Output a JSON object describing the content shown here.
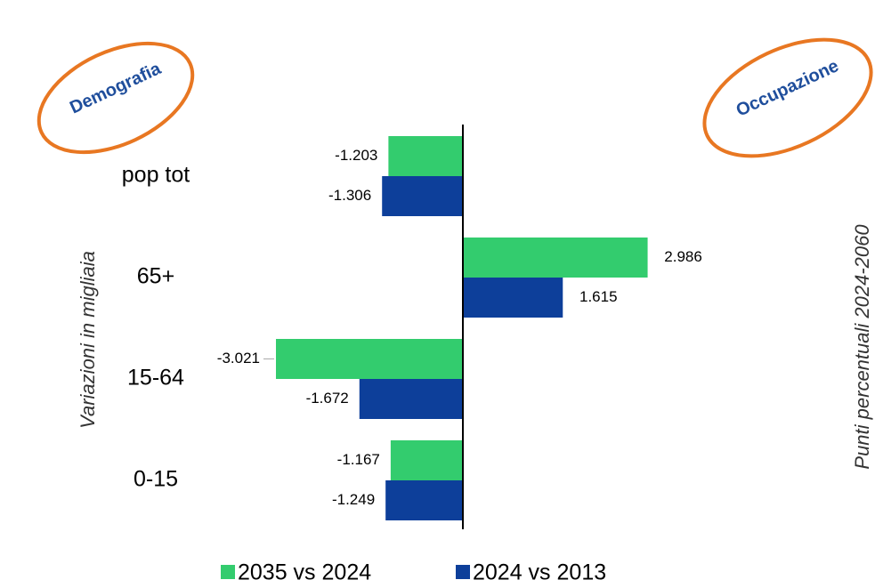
{
  "chart_data": {
    "type": "hbar",
    "annotations": [
      "Demografia",
      "Occupazione"
    ],
    "y_label": "Variazioni in migliaia",
    "y2_label": "Punti percentuali 2024-2060",
    "categories": [
      "pop tot",
      "65+",
      "15-64",
      "0-15"
    ],
    "series": [
      {
        "name": "2035 vs 2024",
        "color": "#33cc6e",
        "values": [
          -1.203,
          2.986,
          -3.021,
          -1.167
        ]
      },
      {
        "name": "2024 vs 2013",
        "color": "#0d3f9a",
        "values": [
          -1.306,
          1.615,
          -1.672,
          -1.249
        ]
      }
    ]
  }
}
